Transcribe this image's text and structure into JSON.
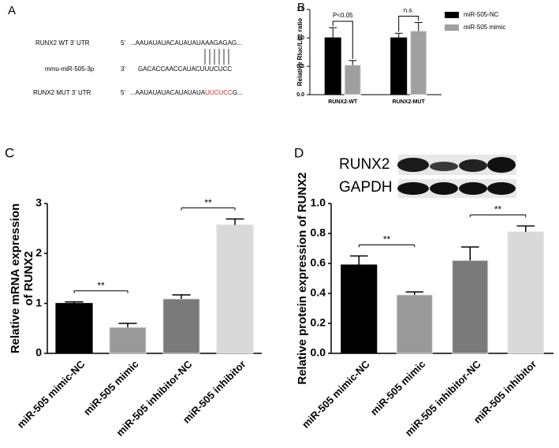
{
  "panel_labels": [
    "A",
    "B",
    "C",
    "D"
  ],
  "sequence_alignment": {
    "rows": [
      {
        "name": "RUNX2 WT 3' UTR",
        "prime": "5'",
        "sequence": "...AAUAUAUACAUAUAUAAAGAGAG..."
      },
      {
        "name": "mmu-miR-505-3p",
        "prime": "3'",
        "sequence": "GACACCAACCAUACUUUCUCC"
      },
      {
        "name": "RUNX2 MUT 3' UTR",
        "prime": "5'",
        "sequence_parts": [
          "...AAUAUAUACAUAUAUA",
          "UUCUCC",
          "G..."
        ]
      }
    ],
    "mutation_color": "#d62728"
  },
  "blot_labels": [
    "RUNX2",
    "GAPDH"
  ],
  "chart_data": [
    {
      "type": "bar",
      "ylabel": [
        "Relative Rluc/Luc ratio"
      ],
      "categories": [
        "RUNX2-WT",
        "RUNX2-MUT"
      ],
      "series": [
        {
          "name": "miR-505-NC",
          "color": "#000000",
          "values": [
            1.0,
            1.0
          ],
          "errors": [
            0.18,
            0.08
          ]
        },
        {
          "name": "miR-505 mimic",
          "color": "#a0a0a0",
          "values": [
            0.52,
            1.12
          ],
          "errors": [
            0.08,
            0.15
          ]
        }
      ],
      "ylim": [
        0,
        1.5
      ],
      "yticks": [
        {
          "value": 0,
          "label": "0.0"
        },
        0.5,
        {
          "value": 1,
          "label": "1.0"
        },
        1.5
      ],
      "legend": "right",
      "significance": [
        {
          "category": "RUNX2-WT",
          "label": "P<0.05"
        },
        {
          "category": "RUNX2-MUT",
          "label": "n.s."
        }
      ]
    },
    {
      "type": "bar",
      "ylabel": [
        "Relative mRNA expression",
        "of RUNX2"
      ],
      "categories": [
        "miR-505 mimic-NC",
        "miR-505 mimic",
        "miR-505 inhibitor-NC",
        "miR-505 inhibitor"
      ],
      "values": [
        1.0,
        0.52,
        1.09,
        2.57
      ],
      "errors": [
        0.03,
        0.08,
        0.08,
        0.12
      ],
      "colors": [
        "#000000",
        "#9a9a9a",
        "#7a7a7a",
        "#d9d9d9"
      ],
      "ylim": [
        0,
        3
      ],
      "yticks": [
        0,
        1,
        2,
        3
      ],
      "significance": [
        {
          "between": [
            "miR-505 mimic-NC",
            "miR-505 mimic"
          ],
          "label": "**"
        },
        {
          "between": [
            "miR-505 inhibitor-NC",
            "miR-505 inhibitor"
          ],
          "label": "**"
        }
      ]
    },
    {
      "type": "bar",
      "ylabel": [
        "Relative protein expression of RUNX2"
      ],
      "categories": [
        "miR-505 mimic-NC",
        "miR-505 mimic",
        "miR-505 inhibitor-NC",
        "miR-505 inhibitor"
      ],
      "values": [
        0.59,
        0.39,
        0.62,
        0.81
      ],
      "errors": [
        0.06,
        0.02,
        0.09,
        0.04
      ],
      "colors": [
        "#000000",
        "#9a9a9a",
        "#7a7a7a",
        "#d9d9d9"
      ],
      "ylim": [
        0,
        1.0
      ],
      "yticks": [
        {
          "value": 0,
          "label": "0.0"
        },
        0.2,
        0.4,
        0.6,
        0.8,
        {
          "value": 1,
          "label": "1.0"
        }
      ],
      "significance": [
        {
          "between": [
            "miR-505 mimic-NC",
            "miR-505 mimic"
          ],
          "label": "**"
        },
        {
          "between": [
            "miR-505 inhibitor-NC",
            "miR-505 inhibitor"
          ],
          "label": "**"
        }
      ]
    }
  ]
}
